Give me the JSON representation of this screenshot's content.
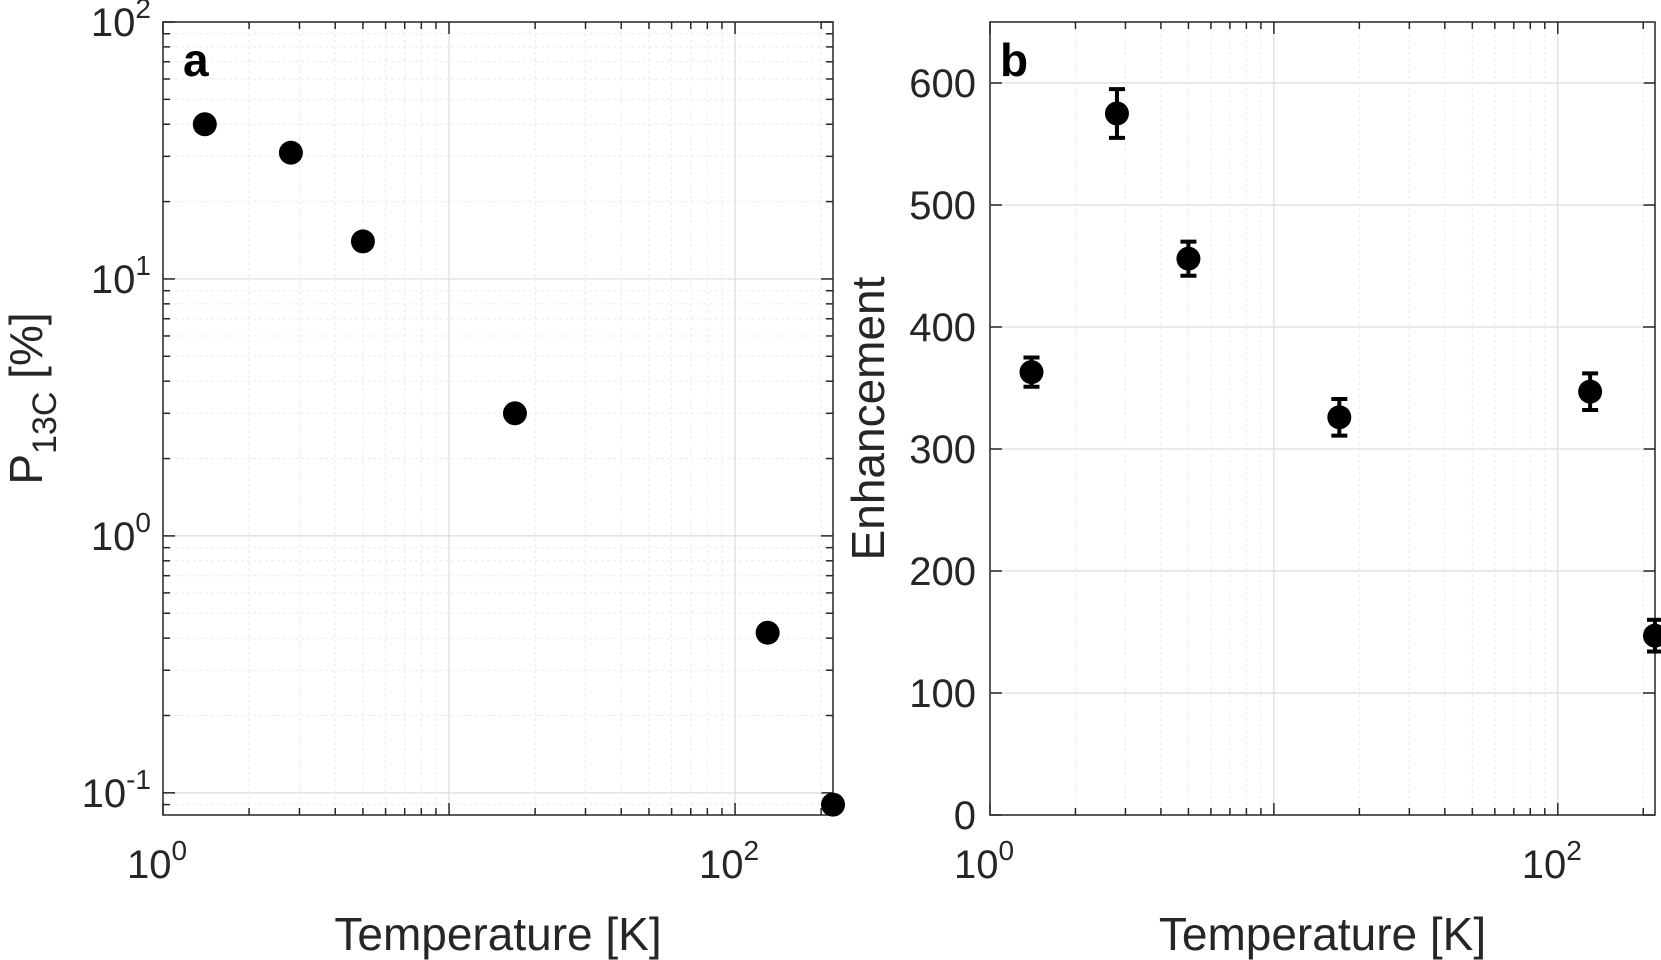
{
  "chart_data": [
    {
      "type": "scatter",
      "panel_label": "a",
      "xlabel": "Temperature [K]",
      "ylabel_main": "P",
      "ylabel_sub": "13C",
      "ylabel_unit": " [%]",
      "xscale": "log",
      "yscale": "log",
      "xlim": [
        1,
        220
      ],
      "ylim": [
        0.082,
        100
      ],
      "grid": true,
      "xticks": [
        {
          "base": "10",
          "exp": "0"
        },
        {
          "base": "10",
          "exp": "2"
        }
      ],
      "yticks": [
        {
          "base": "10",
          "exp": "-1"
        },
        {
          "base": "10",
          "exp": "0"
        },
        {
          "base": "10",
          "exp": "1"
        },
        {
          "base": "10",
          "exp": "2"
        }
      ],
      "x": [
        1.4,
        2.8,
        5,
        17,
        130,
        220
      ],
      "y": [
        40,
        31,
        14,
        3,
        0.42,
        0.09
      ]
    },
    {
      "type": "scatter",
      "panel_label": "b",
      "xlabel": "Temperature [K]",
      "ylabel": "Enhancement",
      "xscale": "log",
      "yscale": "linear",
      "xlim": [
        1,
        220
      ],
      "ylim": [
        0,
        650
      ],
      "grid": true,
      "xticks": [
        {
          "base": "10",
          "exp": "0"
        },
        {
          "base": "10",
          "exp": "2"
        }
      ],
      "yticks": [
        "0",
        "100",
        "200",
        "300",
        "400",
        "500",
        "600"
      ],
      "x": [
        1.4,
        2.8,
        5,
        17,
        130,
        220
      ],
      "y": [
        363,
        575,
        456,
        326,
        347,
        147
      ],
      "yerr": [
        12,
        20,
        14,
        15,
        15,
        13
      ]
    }
  ]
}
